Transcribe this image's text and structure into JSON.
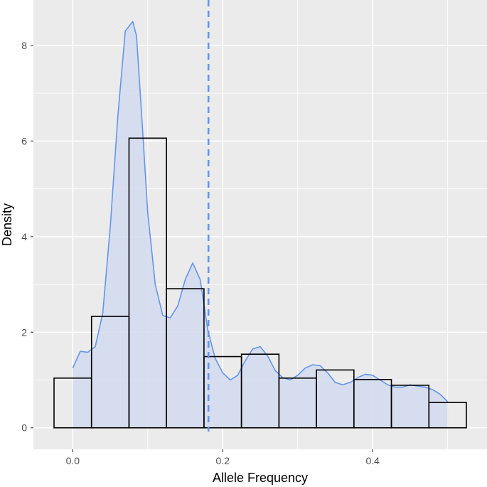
{
  "chart_data": {
    "type": "bar",
    "xlabel": "Allele Frequency",
    "ylabel": "Density",
    "xlim": [
      -0.0525,
      0.5525
    ],
    "ylim": [
      -0.45,
      8.95
    ],
    "x_ticks": [
      0.0,
      0.2,
      0.4
    ],
    "x_tick_labels": [
      "0.0",
      "0.2",
      "0.4"
    ],
    "x_minor_ticks": [
      0.1,
      0.3,
      0.5
    ],
    "y_ticks": [
      0,
      2,
      4,
      6,
      8
    ],
    "y_tick_labels": [
      "0",
      "2",
      "4",
      "6",
      "8"
    ],
    "y_minor_ticks": [
      1,
      3,
      5,
      7
    ],
    "grid": true,
    "histogram": {
      "bin_width": 0.05,
      "bin_centers": [
        0.0,
        0.05,
        0.1,
        0.15,
        0.2,
        0.25,
        0.3,
        0.35,
        0.4,
        0.45,
        0.5
      ],
      "values": [
        1.04,
        2.33,
        6.06,
        2.91,
        1.49,
        1.54,
        1.04,
        1.21,
        1.01,
        0.89,
        0.53
      ],
      "fill": "none",
      "stroke": "#000000"
    },
    "density": {
      "x": [
        0.0,
        0.01,
        0.02,
        0.03,
        0.04,
        0.05,
        0.06,
        0.07,
        0.08,
        0.085,
        0.09,
        0.1,
        0.11,
        0.12,
        0.13,
        0.14,
        0.15,
        0.16,
        0.17,
        0.18,
        0.19,
        0.2,
        0.21,
        0.22,
        0.23,
        0.24,
        0.25,
        0.26,
        0.27,
        0.28,
        0.29,
        0.3,
        0.31,
        0.32,
        0.33,
        0.34,
        0.35,
        0.36,
        0.37,
        0.38,
        0.39,
        0.4,
        0.41,
        0.42,
        0.43,
        0.44,
        0.45,
        0.46,
        0.47,
        0.48,
        0.49,
        0.5
      ],
      "y": [
        1.25,
        1.6,
        1.58,
        1.7,
        2.4,
        4.2,
        6.5,
        8.3,
        8.5,
        8.2,
        7.0,
        4.5,
        3.0,
        2.35,
        2.3,
        2.55,
        3.1,
        3.45,
        3.1,
        2.05,
        1.45,
        1.15,
        1.0,
        1.1,
        1.4,
        1.65,
        1.7,
        1.5,
        1.2,
        1.05,
        1.0,
        1.1,
        1.25,
        1.32,
        1.3,
        1.15,
        0.95,
        0.9,
        0.95,
        1.05,
        1.12,
        1.1,
        1.0,
        0.9,
        0.85,
        0.85,
        0.9,
        0.87,
        0.85,
        0.8,
        0.7,
        0.55
      ],
      "fill": "#d2dbef",
      "stroke": "#6495ed"
    },
    "vline": {
      "x": 0.181,
      "color": "#6495ed",
      "style": "dashed"
    },
    "panel_background": "#ebebeb",
    "grid_color": "#ffffff"
  }
}
